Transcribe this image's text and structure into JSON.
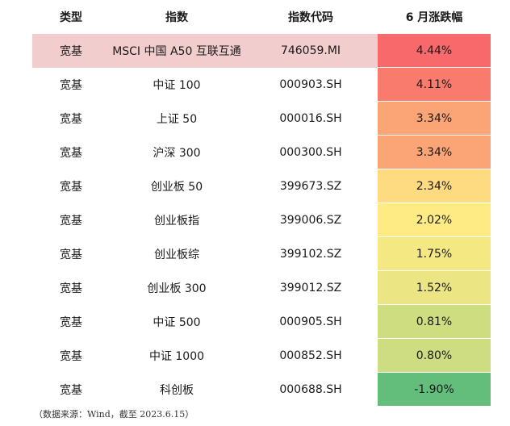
{
  "chart_data": {
    "type": "table",
    "columns": [
      "类型",
      "指数",
      "指数代码",
      "6 月涨跌幅"
    ],
    "rows": [
      {
        "type": "宽基",
        "name": "MSCI 中国 A50 互联互通",
        "code": "746059.MI",
        "change": "4.44%",
        "value": 4.44,
        "highlight": true
      },
      {
        "type": "宽基",
        "name": "中证 100",
        "code": "000903.SH",
        "change": "4.11%",
        "value": 4.11,
        "highlight": false
      },
      {
        "type": "宽基",
        "name": "上证 50",
        "code": "000016.SH",
        "change": "3.34%",
        "value": 3.34,
        "highlight": false
      },
      {
        "type": "宽基",
        "name": "沪深 300",
        "code": "000300.SH",
        "change": "3.34%",
        "value": 3.34,
        "highlight": false
      },
      {
        "type": "宽基",
        "name": "创业板 50",
        "code": "399673.SZ",
        "change": "2.34%",
        "value": 2.34,
        "highlight": false
      },
      {
        "type": "宽基",
        "name": "创业板指",
        "code": "399006.SZ",
        "change": "2.02%",
        "value": 2.02,
        "highlight": false
      },
      {
        "type": "宽基",
        "name": "创业板综",
        "code": "399102.SZ",
        "change": "1.75%",
        "value": 1.75,
        "highlight": false
      },
      {
        "type": "宽基",
        "name": "创业板 300",
        "code": "399012.SZ",
        "change": "1.52%",
        "value": 1.52,
        "highlight": false
      },
      {
        "type": "宽基",
        "name": "中证 500",
        "code": "000905.SH",
        "change": "0.81%",
        "value": 0.81,
        "highlight": false
      },
      {
        "type": "宽基",
        "name": "中证 1000",
        "code": "000852.SH",
        "change": "0.80%",
        "value": 0.8,
        "highlight": false
      },
      {
        "type": "宽基",
        "name": "科创板",
        "code": "000688.SH",
        "change": "-1.90%",
        "value": -1.9,
        "highlight": false
      }
    ],
    "color_scale": {
      "min_color": "#63be7b",
      "mid_color": "#ffeb84",
      "max_color": "#f8696b"
    }
  },
  "source_note": "（数据来源：Wind，截至 2023.6.15）"
}
